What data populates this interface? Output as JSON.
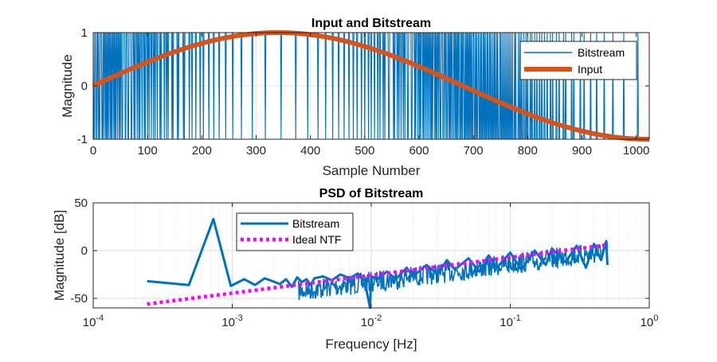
{
  "chart_data": [
    {
      "type": "line",
      "title": "Input and Bitstream",
      "xlabel": "Sample Number",
      "ylabel": "Magnitude",
      "xlim": [
        0,
        1024
      ],
      "ylim": [
        -1,
        1
      ],
      "xticks": [
        "0",
        "100",
        "200",
        "300",
        "400",
        "500",
        "600",
        "700",
        "800",
        "900",
        "1000"
      ],
      "yticks": [
        "-1",
        "0",
        "1"
      ],
      "grid": true,
      "legend_position": "top-right",
      "series": [
        {
          "name": "Bitstream",
          "kind": "pdm bitstream (values in {-1,1}) following the input",
          "color": "#0072BD"
        },
        {
          "name": "Input",
          "kind": "sinusoid, peak 1 at sample ~340, trough -1 at sample ~1024",
          "color": "#D95319",
          "x": [
            0,
            100,
            200,
            300,
            340,
            400,
            500,
            600,
            700,
            800,
            900,
            1000,
            1024
          ],
          "y": [
            -0.02,
            0.5,
            0.86,
            0.995,
            1.0,
            0.98,
            0.87,
            0.49,
            0.03,
            -0.5,
            -0.86,
            -0.99,
            -1.0
          ]
        }
      ]
    },
    {
      "type": "line",
      "title": "PSD of Bitstream",
      "xlabel": "Frequency [Hz]",
      "ylabel": "Magnitude [dB]",
      "xscale": "log",
      "xlim": [
        0.0001,
        1
      ],
      "ylim": [
        -60,
        50
      ],
      "xticks": [
        "10",
        "10",
        "10",
        "10",
        "10"
      ],
      "xtick_exponents": [
        "-4",
        "-3",
        "-2",
        "-1",
        "0"
      ],
      "yticks": [
        "-50",
        "0",
        "50"
      ],
      "grid": true,
      "legend_position": "top-left",
      "series": [
        {
          "name": "Bitstream",
          "color": "#0072BD",
          "x": [
            0.000244,
            0.000488,
            0.000732,
            0.000977,
            0.00122,
            0.00146,
            0.00171,
            0.00195,
            0.0022,
            0.00244,
            0.00269,
            0.00293,
            0.00317,
            0.00342,
            0.00366,
            0.0039,
            0.0045,
            0.0052,
            0.006,
            0.007,
            0.008,
            0.009,
            0.0098,
            0.01,
            0.011,
            0.013,
            0.015,
            0.018,
            0.02,
            0.025,
            0.03,
            0.035,
            0.04,
            0.05,
            0.06,
            0.07,
            0.08,
            0.1,
            0.12,
            0.15,
            0.18,
            0.2,
            0.25,
            0.3,
            0.35,
            0.4,
            0.45,
            0.49,
            0.5
          ],
          "y": [
            -32,
            -36,
            33,
            -37,
            -30,
            -36,
            -29,
            -32,
            -35,
            -30,
            -38,
            -28,
            -33,
            -30,
            -36,
            -29,
            -27,
            -31,
            -25,
            -29,
            -24,
            -33,
            -60,
            -27,
            -30,
            -22,
            -30,
            -18,
            -27,
            -15,
            -25,
            -10,
            -20,
            -8,
            -22,
            -5,
            -18,
            -2,
            -20,
            0,
            -15,
            2,
            -12,
            5,
            -18,
            7,
            -10,
            10,
            -15
          ]
        },
        {
          "name": "Ideal NTF",
          "color": "#FF00FF",
          "style": "dotted",
          "x": [
            0.000244,
            0.5
          ],
          "y": [
            -56,
            6
          ]
        }
      ]
    }
  ]
}
